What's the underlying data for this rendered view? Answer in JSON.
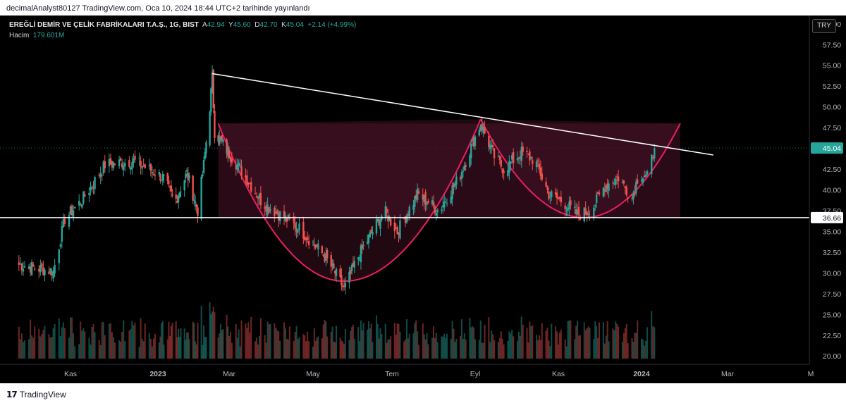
{
  "header": {
    "publish_text": "decimalAnalyst80127 TradingView.com, Oca 10, 2024 18:44 UTC+2 tarihinde yayınlandı"
  },
  "legend": {
    "symbol": "EREĞLİ DEMİR VE ÇELİK FABRİKALARI T.A.Ş., 1G, BIST",
    "o_label": "A",
    "o_value": "42.94",
    "h_label": "Y",
    "h_value": "45.60",
    "l_label": "D",
    "l_value": "42.70",
    "c_label": "K",
    "c_value": "45.04",
    "change": "+2.14 (+4.99%)",
    "volume_label": "Hacim",
    "volume_value": "179.601M"
  },
  "currency_button": "TRY",
  "footer": {
    "brand": "TradingView",
    "logo_mark": "17"
  },
  "colors": {
    "background": "#000000",
    "up": "#26a69a",
    "down": "#ef5350",
    "pattern_fill": "#4a1328",
    "pattern_curve": "#e91e63",
    "trendline": "#ffffff",
    "price_label_bg": "#26a69a"
  },
  "chart_data": {
    "type": "candlestick",
    "ylim": [
      19,
      61
    ],
    "y_ticks": [
      "60.00",
      "57.50",
      "55.00",
      "52.50",
      "50.00",
      "47.50",
      "45.04",
      "42.50",
      "40.00",
      "37.50",
      "36.66",
      "35.00",
      "32.50",
      "30.00",
      "27.50",
      "25.00",
      "22.50",
      "20.00"
    ],
    "x_ticks": [
      "Kas",
      "2023",
      "Mar",
      "May",
      "Tem",
      "Eyl",
      "Kas",
      "2024",
      "Mar",
      "M"
    ],
    "current_price": 45.04,
    "support_level": 36.66,
    "trendline": {
      "from": [
        "2023-02-15",
        54.0
      ],
      "to": [
        "2024-02-20",
        44.2
      ]
    },
    "rectangle": {
      "from": "2023-02-20",
      "to": "2024-01-28",
      "top": 48.0,
      "bottom": 36.66
    },
    "cup_patterns": [
      {
        "start": [
          "2023-02-20",
          48.0
        ],
        "bottom": [
          "2023-05-25",
          29.0
        ],
        "end": [
          "2023-09-05",
          48.5
        ]
      },
      {
        "start": [
          "2023-09-05",
          48.5
        ],
        "bottom": [
          "2023-11-20",
          36.66
        ],
        "end": [
          "2024-01-28",
          48.0
        ]
      }
    ],
    "ohlc_keypoints": [
      [
        "2022-09-26",
        31.0
      ],
      [
        "2022-10-20",
        30.2
      ],
      [
        "2022-10-28",
        36.5
      ],
      [
        "2022-11-10",
        39.0
      ],
      [
        "2022-11-25",
        43.0
      ],
      [
        "2022-12-15",
        43.5
      ],
      [
        "2023-01-05",
        41.5
      ],
      [
        "2023-01-15",
        38.5
      ],
      [
        "2023-01-25",
        42.0
      ],
      [
        "2023-02-03",
        37.5
      ],
      [
        "2023-02-08",
        43.0
      ],
      [
        "2023-02-13",
        50.0
      ],
      [
        "2023-02-15",
        53.5
      ],
      [
        "2023-02-17",
        47.0
      ],
      [
        "2023-03-05",
        43.5
      ],
      [
        "2023-03-25",
        38.5
      ],
      [
        "2023-04-20",
        35.5
      ],
      [
        "2023-05-10",
        32.0
      ],
      [
        "2023-05-20",
        29.5
      ],
      [
        "2023-05-25",
        28.0
      ],
      [
        "2023-06-05",
        32.0
      ],
      [
        "2023-06-25",
        37.5
      ],
      [
        "2023-07-05",
        35.0
      ],
      [
        "2023-07-20",
        39.5
      ],
      [
        "2023-08-05",
        37.5
      ],
      [
        "2023-08-20",
        41.5
      ],
      [
        "2023-09-05",
        48.0
      ],
      [
        "2023-09-15",
        44.0
      ],
      [
        "2023-09-22",
        42.5
      ],
      [
        "2023-10-05",
        44.5
      ],
      [
        "2023-10-15",
        43.5
      ],
      [
        "2023-10-25",
        39.5
      ],
      [
        "2023-11-05",
        38.5
      ],
      [
        "2023-11-15",
        37.0
      ],
      [
        "2023-11-25",
        37.5
      ],
      [
        "2023-12-05",
        40.5
      ],
      [
        "2023-12-15",
        41.5
      ],
      [
        "2023-12-25",
        39.0
      ],
      [
        "2023-12-30",
        42.0
      ],
      [
        "2024-01-05",
        41.5
      ],
      [
        "2024-01-10",
        45.04
      ]
    ]
  }
}
